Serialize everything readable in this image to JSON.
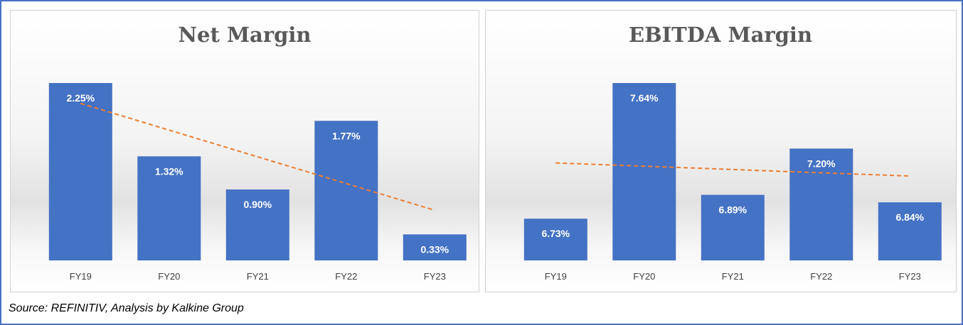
{
  "chart_data": [
    {
      "type": "bar",
      "title": "Net Margin",
      "categories": [
        "FY19",
        "FY20",
        "FY21",
        "FY22",
        "FY23"
      ],
      "values": [
        2.25,
        1.32,
        0.9,
        1.77,
        0.33
      ],
      "data_labels": [
        "2.25%",
        "1.32%",
        "0.90%",
        "1.77%",
        "0.33%"
      ],
      "xlabel": "",
      "ylabel": "",
      "ylim": [
        0,
        2.25
      ],
      "trendline": "linear",
      "grid": false,
      "colors": {
        "bar": "#4472c4",
        "trendline": "#ed7d31"
      }
    },
    {
      "type": "bar",
      "title": "EBITDA Margin",
      "categories": [
        "FY19",
        "FY20",
        "FY21",
        "FY22",
        "FY23"
      ],
      "values": [
        6.73,
        7.64,
        6.89,
        7.2,
        6.84
      ],
      "data_labels": [
        "6.73%",
        "7.64%",
        "6.89%",
        "7.20%",
        "6.84%"
      ],
      "xlabel": "",
      "ylabel": "",
      "ylim": [
        6.45,
        7.64
      ],
      "trendline": "linear",
      "grid": false,
      "colors": {
        "bar": "#4472c4",
        "trendline": "#ed7d31"
      }
    }
  ],
  "source": "Source: REFINITIV, Analysis by Kalkine Group"
}
